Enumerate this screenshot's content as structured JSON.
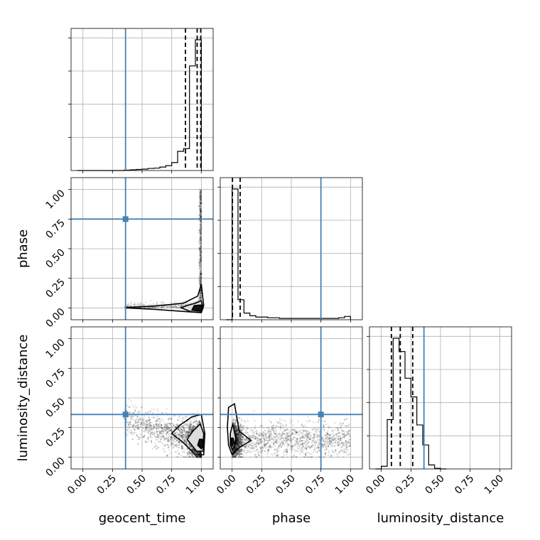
{
  "chart_data": {
    "type": "corner",
    "parameters": [
      "geocent_time",
      "phase",
      "luminosity_distance"
    ],
    "axis_labels": {
      "x": [
        "geocent_time",
        "phase",
        "luminosity_distance"
      ],
      "y": [
        "",
        "phase",
        "luminosity_distance"
      ]
    },
    "range": [
      -0.1,
      1.1
    ],
    "ticks": [
      0.0,
      0.25,
      0.5,
      0.75,
      1.0
    ],
    "tick_labels": [
      "0.00",
      "0.25",
      "0.50",
      "0.75",
      "1.00"
    ],
    "grid": true,
    "truths": {
      "geocent_time": 0.36,
      "phase": 0.75,
      "luminosity_distance": 0.36
    },
    "truth_color": "#4682b4",
    "hist_color": "#000000",
    "histograms": {
      "geocent_time": {
        "bins": [
          0.0,
          0.05,
          0.1,
          0.15,
          0.2,
          0.25,
          0.3,
          0.35,
          0.4,
          0.45,
          0.5,
          0.55,
          0.6,
          0.65,
          0.7,
          0.75,
          0.8,
          0.85,
          0.9,
          0.95,
          1.0
        ],
        "counts": [
          0,
          0,
          0,
          0,
          0,
          0,
          0,
          1,
          2,
          3,
          4,
          6,
          7,
          10,
          14,
          23,
          55,
          63,
          300,
          375
        ],
        "quantiles": [
          0.866,
          0.965,
          0.995
        ]
      },
      "phase": {
        "bins": [
          0.0,
          0.05,
          0.1,
          0.15,
          0.2,
          0.25,
          0.3,
          0.35,
          0.4,
          0.45,
          0.5,
          0.55,
          0.6,
          0.65,
          0.7,
          0.75,
          0.8,
          0.85,
          0.9,
          0.95,
          1.0
        ],
        "counts": [
          98,
          15,
          5,
          3,
          2,
          2,
          1.5,
          1.5,
          1,
          1,
          1,
          1,
          1,
          1,
          1,
          1,
          1,
          1,
          1.5,
          2.5
        ],
        "quantiles": [
          0.003,
          0.068
        ]
      },
      "luminosity_distance": {
        "bins": [
          0.0,
          0.05,
          0.1,
          0.15,
          0.2,
          0.25,
          0.3,
          0.35,
          0.4,
          0.45,
          0.5,
          0.55
        ],
        "counts": [
          2,
          37,
          98,
          88,
          68,
          54,
          33,
          18,
          3,
          0.5,
          0
        ],
        "quantiles": [
          0.085,
          0.16,
          0.265
        ]
      }
    },
    "contour_levels_note": "2D density contours rendered for each parameter pair",
    "samples_2d": {
      "geocent_time_phase_center": [
        0.98,
        0.0
      ],
      "geocent_time_luminosity_distance_center": [
        1.0,
        0.12
      ],
      "phase_luminosity_distance_center": [
        0.0,
        0.14
      ]
    }
  }
}
